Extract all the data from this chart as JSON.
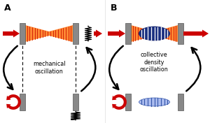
{
  "bg_color": "#ffffff",
  "panel_A_label": "A",
  "panel_B_label": "B",
  "text_A": "mechanical\noscillation",
  "text_B": "collective\ndensity\noscillation",
  "mirror_color": "#888888",
  "mirror_edge": "#555555",
  "arrow_red": "#cc0000",
  "beam_bg": "#ff8833",
  "beam_stripe": "#cc1100",
  "bec_fill": "#1a3080",
  "bec_stripe_light": "#aabbdd",
  "bec_flat_fill": "#aabbee",
  "bec_flat_stripe": "#3355aa"
}
